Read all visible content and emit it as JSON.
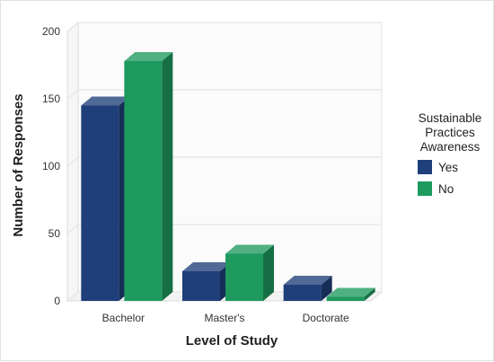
{
  "chart_data": {
    "type": "bar",
    "title": "",
    "xlabel": "Level of Study",
    "ylabel": "Number of Responses",
    "categories": [
      "Bachelor",
      "Master's",
      "Doctorate"
    ],
    "series": [
      {
        "name": "Yes",
        "values": [
          145,
          22,
          12
        ],
        "color": "#1f3f7a"
      },
      {
        "name": "No",
        "values": [
          178,
          35,
          3
        ],
        "color": "#1e9a5f"
      }
    ],
    "yticks": [
      0,
      50,
      100,
      150,
      200
    ],
    "ylim": [
      0,
      200
    ],
    "grid": true,
    "legend": {
      "title": [
        "Sustainable",
        "Practices",
        "Awareness"
      ],
      "placement": "right"
    }
  }
}
